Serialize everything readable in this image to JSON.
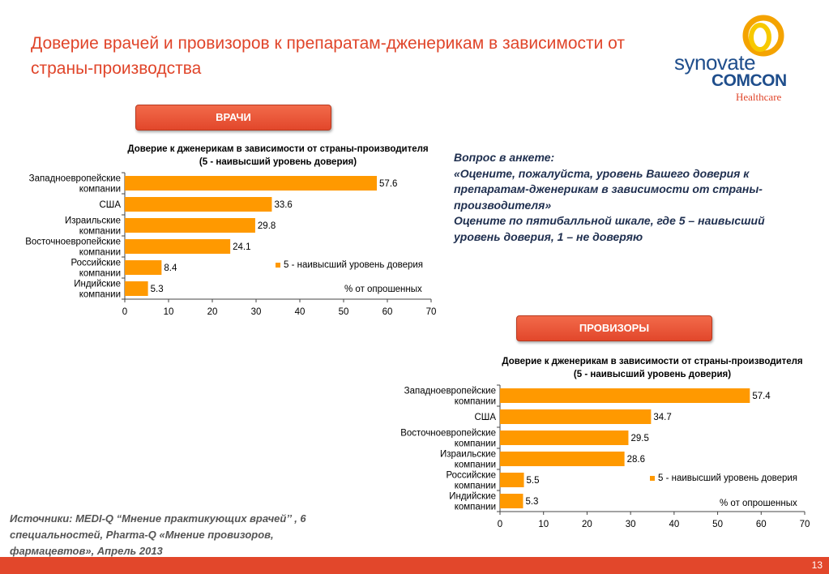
{
  "title": "Доверие врачей и провизоров к препаратам-дженерикам в зависимости от страны-производства",
  "logo": {
    "line1": "synovate",
    "line2": "COMCON",
    "line3": "Healthcare"
  },
  "colors": {
    "accent": "#e2472b",
    "bar": "#ff9900",
    "title": "#e0452a"
  },
  "sections": {
    "doctors_label": "ВРАЧИ",
    "pharmacists_label": "ПРОВИЗОРЫ"
  },
  "question": {
    "heading": "Вопрос в анкете:",
    "text": "«Оцените, пожалуйста, уровень Вашего доверия к препаратам-дженерикам в зависимости от страны-производителя»",
    "scale": "Оцените по пятибалльной шкале, где 5 – наивысший уровень доверия, 1 – не доверяю"
  },
  "sources": "Источники: MEDI-Q “Мнение практикующих врачей’’ , 6 специальностей, Pharma-Q «Мнение провизоров, фармацевтов», Апрель 2013",
  "page_number": "13",
  "chart_data": [
    {
      "type": "bar",
      "orientation": "horizontal",
      "title": "Доверие к дженерикам в зависимости от страны-производителя",
      "subtitle": "(5 - наивысший уровень доверия)",
      "categories": [
        "Западноевропейские компании",
        "США",
        "Израильские компании",
        "Восточноевропейские компании",
        "Российские компании",
        "Индийские компании"
      ],
      "series": [
        {
          "name": "5 - наивысший уровень доверия",
          "values": [
            57.6,
            33.6,
            29.8,
            24.1,
            8.4,
            5.3
          ]
        }
      ],
      "xlim": [
        0,
        70
      ],
      "xticks": [
        "0",
        "10",
        "20",
        "30",
        "40",
        "50",
        "60",
        "70"
      ],
      "unit_note": "% от опрошенных",
      "legend": "right",
      "grid": false
    },
    {
      "type": "bar",
      "orientation": "horizontal",
      "title": "Доверие к дженерикам в зависимости от страны-производителя",
      "subtitle": "(5 - наивысший уровень доверия)",
      "categories": [
        "Западноевропейские компании",
        "США",
        "Восточноевропейские компании",
        "Израильские компании",
        "Российские компании",
        "Индийские компании"
      ],
      "series": [
        {
          "name": "5 - наивысший уровень доверия",
          "values": [
            57.4,
            34.7,
            29.5,
            28.6,
            5.5,
            5.3
          ]
        }
      ],
      "xlim": [
        0,
        70
      ],
      "xticks": [
        "0",
        "10",
        "20",
        "30",
        "40",
        "50",
        "60",
        "70"
      ],
      "unit_note": "% от опрошенных",
      "legend": "right",
      "grid": false
    }
  ]
}
